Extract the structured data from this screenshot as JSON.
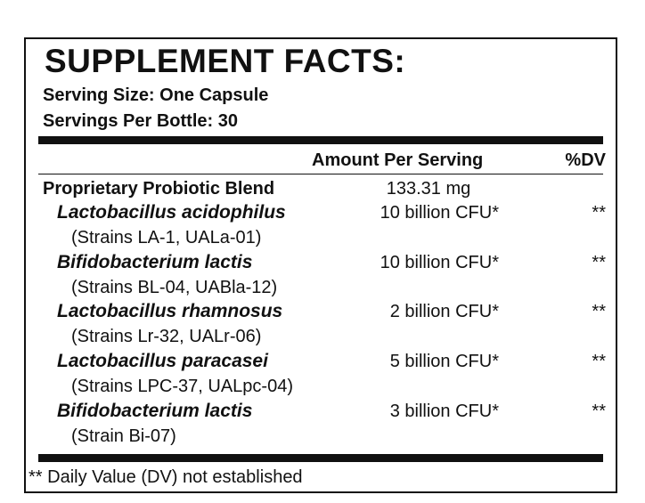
{
  "title": "SUPPLEMENT FACTS:",
  "serving_size": "Serving Size: One Capsule",
  "servings_per_bottle": "Servings Per Bottle: 30",
  "columns": {
    "amount": "Amount Per Serving",
    "dv": "%DV"
  },
  "blend": {
    "name": "Proprietary Probiotic Blend",
    "amount": "133.31 mg"
  },
  "ingredients": [
    {
      "name": "Lactobacillus acidophilus",
      "amount": "10 billion CFU*",
      "dv": "**",
      "strains": "(Strains LA-1, UALa-01)"
    },
    {
      "name": "Bifidobacterium lactis",
      "amount": "10 billion CFU*",
      "dv": "**",
      "strains": "(Strains BL-04, UABla-12)"
    },
    {
      "name": "Lactobacillus rhamnosus",
      "amount": "2 billion CFU*",
      "dv": "**",
      "strains": "(Strains Lr-32, UALr-06)"
    },
    {
      "name": "Lactobacillus paracasei",
      "amount": "5 billion CFU*",
      "dv": "**",
      "strains": "(Strains LPC-37, UALpc-04)"
    },
    {
      "name": "Bifidobacterium lactis",
      "amount": "3 billion CFU*",
      "dv": "**",
      "strains": "(Strain Bi-07)"
    }
  ],
  "footnote": "** Daily Value (DV) not established"
}
